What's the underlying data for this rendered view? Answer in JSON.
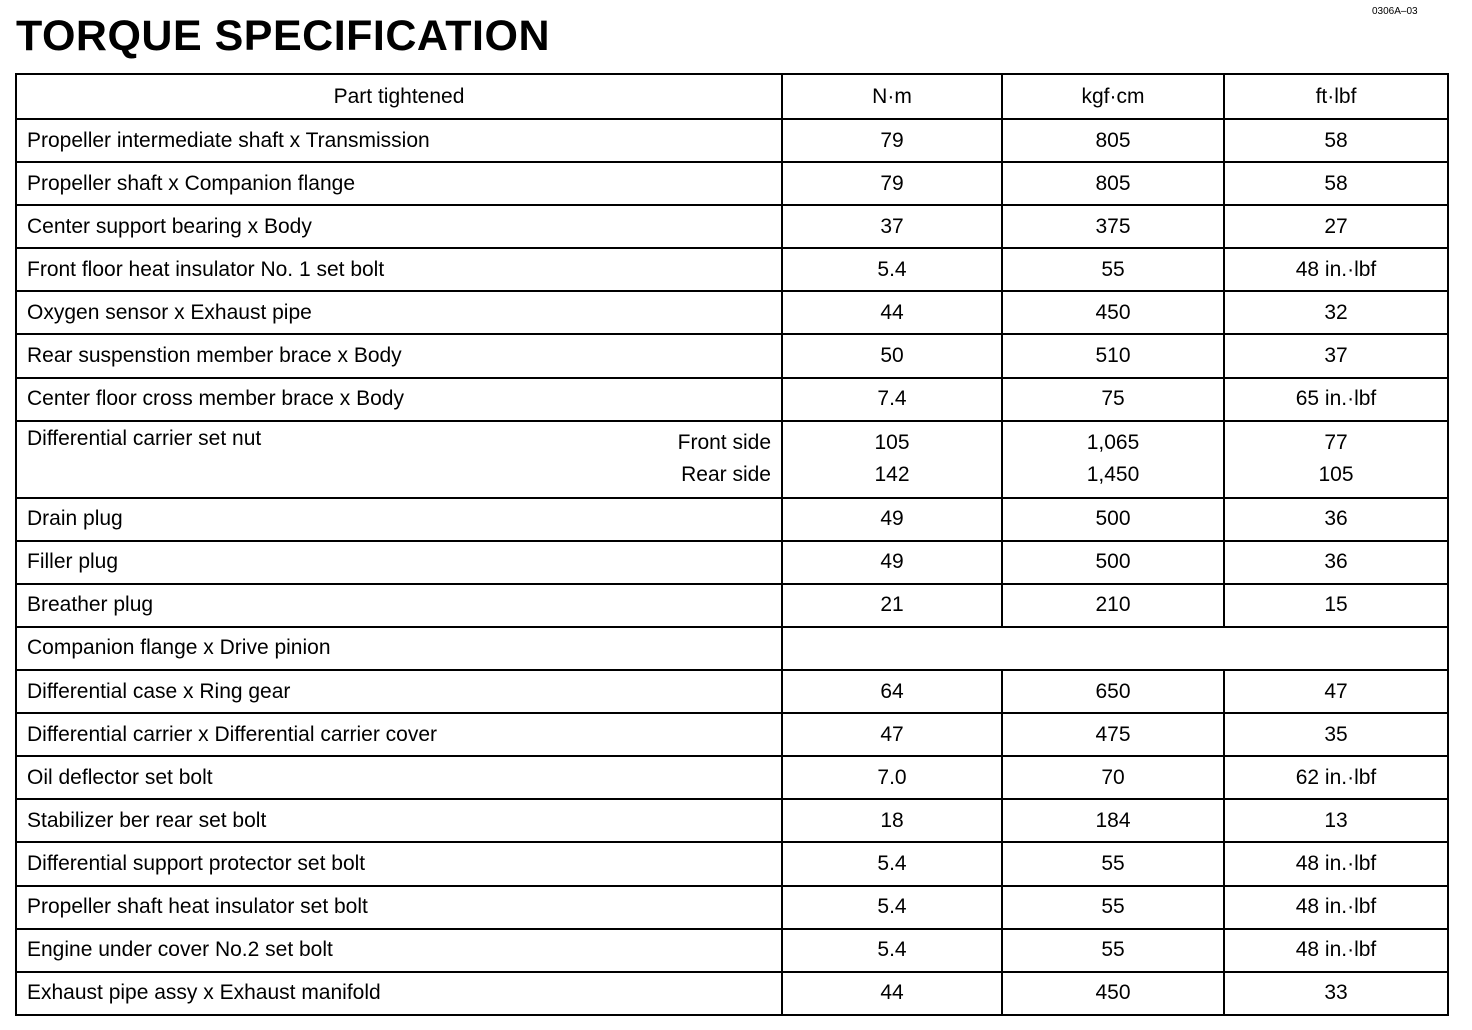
{
  "header": {
    "code": "0306A–03",
    "title": "TORQUE SPECIFICATION"
  },
  "table": {
    "columns": [
      "Part tightened",
      "N·m",
      "kgf·cm",
      "ft·lbf"
    ],
    "rows": [
      {
        "part": "Propeller intermediate shaft x Transmission",
        "nm": "79",
        "kgf": "805",
        "ft": "58"
      },
      {
        "part": "Propeller shaft x Companion flange",
        "nm": "79",
        "kgf": "805",
        "ft": "58"
      },
      {
        "part": "Center support bearing x Body",
        "nm": "37",
        "kgf": "375",
        "ft": "27"
      },
      {
        "part": "Front floor heat insulator No. 1 set bolt",
        "nm": "5.4",
        "kgf": "55",
        "ft": "48 in.·lbf"
      },
      {
        "part": "Oxygen sensor x Exhaust pipe",
        "nm": "44",
        "kgf": "450",
        "ft": "32"
      },
      {
        "part": "Rear suspenstion member brace x Body",
        "nm": "50",
        "kgf": "510",
        "ft": "37"
      },
      {
        "part": "Center floor cross member brace x Body",
        "nm": "7.4",
        "kgf": "75",
        "ft": "65 in.·lbf"
      },
      {
        "part": "Differential carrier set nut",
        "sides": [
          {
            "side": "Front side",
            "nm": "105",
            "kgf": "1,065",
            "ft": "77"
          },
          {
            "side": "Rear side",
            "nm": "142",
            "kgf": "1,450",
            "ft": "105"
          }
        ]
      },
      {
        "part": "Drain plug",
        "nm": "49",
        "kgf": "500",
        "ft": "36"
      },
      {
        "part": "Filler plug",
        "nm": "49",
        "kgf": "500",
        "ft": "36"
      },
      {
        "part": "Breather plug",
        "nm": "21",
        "kgf": "210",
        "ft": "15"
      },
      {
        "part": "Companion flange x Drive pinion"
      },
      {
        "part": "Differential case x Ring gear",
        "nm": "64",
        "kgf": "650",
        "ft": "47"
      },
      {
        "part": "Differential carrier x Differential carrier cover",
        "nm": "47",
        "kgf": "475",
        "ft": "35"
      },
      {
        "part": "Oil deflector set bolt",
        "nm": "7.0",
        "kgf": "70",
        "ft": "62 in.·lbf"
      },
      {
        "part": "Stabilizer ber rear set bolt",
        "nm": "18",
        "kgf": "184",
        "ft": "13"
      },
      {
        "part": "Differential support protector set bolt",
        "nm": "5.4",
        "kgf": "55",
        "ft": "48 in.·lbf"
      },
      {
        "part": "Propeller shaft heat insulator set bolt",
        "nm": "5.4",
        "kgf": "55",
        "ft": "48 in.·lbf"
      },
      {
        "part": "Engine under cover No.2 set bolt",
        "nm": "5.4",
        "kgf": "55",
        "ft": "48 in.·lbf"
      },
      {
        "part": "Exhaust pipe assy x Exhaust manifold",
        "nm": "44",
        "kgf": "450",
        "ft": "33"
      }
    ]
  }
}
